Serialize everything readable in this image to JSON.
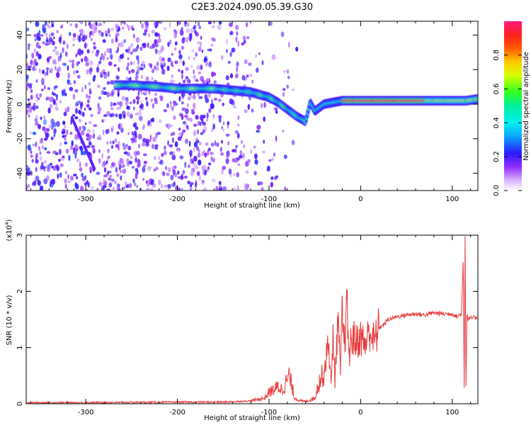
{
  "title": "C2E3.2024.090.05.39.G30",
  "chart_data": [
    {
      "type": "heatmap",
      "xlabel": "Height of straight line (km)",
      "ylabel": "Frequency (Hz)",
      "xlim": [
        -365,
        128
      ],
      "ylim": [
        -50,
        48
      ],
      "x_ticks": [
        -300,
        -200,
        -100,
        0,
        100
      ],
      "y_ticks": [
        -40,
        -20,
        0,
        20,
        40
      ],
      "colorbar": {
        "label": "Normalized spectral amplitude",
        "range": [
          0,
          1
        ],
        "ticks": [
          0.0,
          0.2,
          0.4,
          0.6,
          0.8
        ],
        "tick_labels": [
          "0.0",
          "0.2",
          "0.4",
          "0.6",
          "0.8"
        ]
      },
      "ridge": {
        "x": [
          -268,
          -250,
          -220,
          -200,
          -180,
          -160,
          -140,
          -120,
          -100,
          -90,
          -80,
          -70,
          -60,
          -55,
          -50,
          -45,
          -40,
          -30,
          -20,
          0,
          20,
          40,
          60,
          80,
          100,
          115,
          128
        ],
        "y": [
          11,
          11,
          10,
          9,
          9,
          9,
          8,
          7,
          4,
          1,
          -3,
          -7,
          -10,
          1,
          -4,
          -2,
          0,
          1,
          2,
          2,
          2,
          2,
          2,
          2,
          2,
          2,
          3
        ]
      },
      "grid": false,
      "colormap": "hsv-like (white-purple-blue-cyan-green-yellow-red-pink)"
    },
    {
      "type": "line",
      "xlabel": "Height of straight line (km)",
      "ylabel": "SNR (10 * v/v)",
      "multiplier": "(x10^4)",
      "xlim": [
        -365,
        128
      ],
      "ylim": [
        0,
        3
      ],
      "x_ticks": [
        -300,
        -200,
        -100,
        0,
        100
      ],
      "y_ticks": [
        0,
        1,
        2,
        3
      ],
      "series": [
        {
          "color": "#e8393a",
          "x": [
            -365,
            -300,
            -200,
            -150,
            -120,
            -105,
            -100,
            -90,
            -85,
            -78,
            -72,
            -65,
            -60,
            -50,
            -45,
            -40,
            -35,
            -32,
            -30,
            -28,
            -25,
            -22,
            -20,
            -18,
            -15,
            -12,
            -10,
            -5,
            0,
            5,
            10,
            15,
            20,
            25,
            30,
            40,
            50,
            60,
            70,
            80,
            90,
            100,
            105,
            110,
            112,
            113,
            114,
            115,
            116,
            117,
            120,
            128
          ],
          "y": [
            0.02,
            0.02,
            0.03,
            0.03,
            0.05,
            0.1,
            0.2,
            0.3,
            0.25,
            0.5,
            0.1,
            0.05,
            0.04,
            0.1,
            0.4,
            0.55,
            1.1,
            0.3,
            1.3,
            0.4,
            1.5,
            0.6,
            1.6,
            1.0,
            1.7,
            0.8,
            1.2,
            1.1,
            1.2,
            1.05,
            1.3,
            1.1,
            1.35,
            1.4,
            1.5,
            1.55,
            1.58,
            1.6,
            1.58,
            1.62,
            1.6,
            1.6,
            1.55,
            1.6,
            2.55,
            0.3,
            3.0,
            0.3,
            1.6,
            1.5,
            1.52,
            1.54
          ]
        }
      ]
    }
  ]
}
